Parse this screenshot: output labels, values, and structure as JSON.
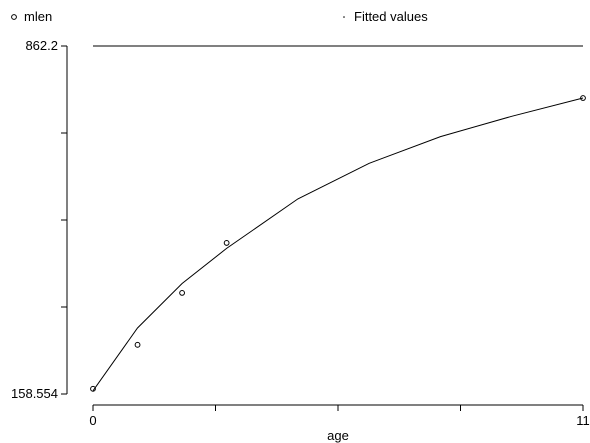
{
  "chart_data": {
    "type": "scatter",
    "xlabel": "age",
    "ylabel": "",
    "xlim": [
      0,
      11
    ],
    "ylim": [
      158.554,
      862.2
    ],
    "xtick_labels": [
      "0",
      "",
      "",
      "",
      "",
      "",
      "",
      "",
      "",
      "",
      "",
      "11"
    ],
    "xticks": [
      0,
      2.75,
      5.5,
      8.25,
      11
    ],
    "xtick_text": [
      "0",
      "",
      "",
      "",
      "11"
    ],
    "yticks": [
      158.554,
      334.466,
      510.377,
      686.289,
      862.2
    ],
    "ytick_text": [
      "158.554",
      "",
      "",
      "",
      "862.2"
    ],
    "legend_position": "top",
    "reference_line_y": 862.2,
    "series": [
      {
        "name": "mlen",
        "kind": "markers",
        "marker": "hollow-circle",
        "x": [
          0,
          1,
          2,
          3,
          11
        ],
        "y": [
          169,
          258,
          363,
          464,
          757
        ]
      },
      {
        "name": "Fitted values",
        "kind": "line",
        "x": [
          0,
          1,
          2,
          3,
          4.6,
          6.2,
          7.8,
          9.4,
          11
        ],
        "y": [
          165,
          292,
          382,
          453,
          553,
          625,
          679,
          720,
          757
        ]
      }
    ],
    "colors": {
      "axis": "#000000",
      "line": "#000000",
      "background": "#ffffff"
    }
  }
}
